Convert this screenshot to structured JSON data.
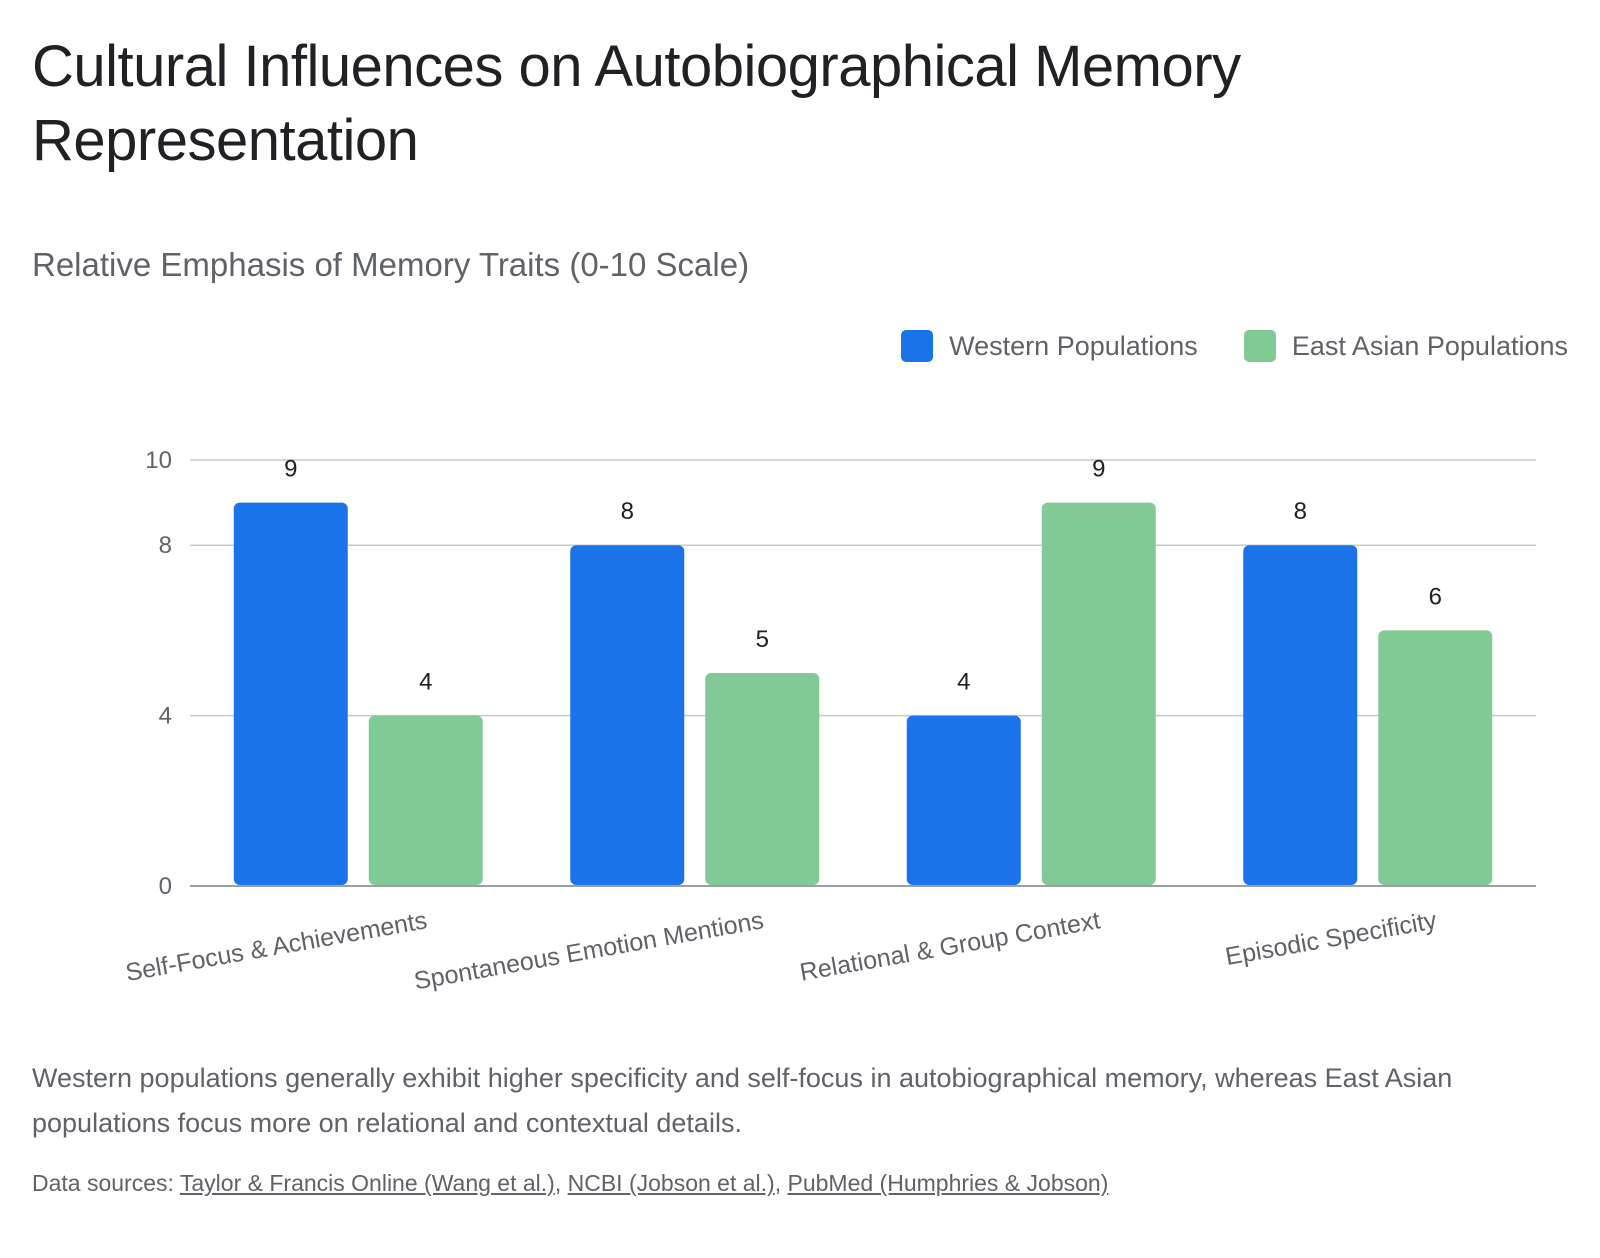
{
  "title": "Cultural Influences on Autobiographical Memory Representation",
  "description": "Western populations generally exhibit higher specificity and self-focus in autobiographical memory, whereas East Asian populations focus more on relational and contextual details.",
  "sources": {
    "prefix": "Data sources:",
    "links": [
      {
        "text": "Taylor & Francis Online (Wang et al.)"
      },
      {
        "text": "NCBI (Jobson et al.)"
      },
      {
        "text": "PubMed (Humphries & Jobson)"
      }
    ],
    "separator": ","
  },
  "chart_data": {
    "type": "bar",
    "title": "Relative Emphasis of Memory Traits (0-10 Scale)",
    "categories": [
      "Self-Focus & Achievements",
      "Spontaneous Emotion Mentions",
      "Relational & Group Context",
      "Episodic Specificity"
    ],
    "series": [
      {
        "name": "Western Populations",
        "color": "#1a73e8",
        "values": [
          9,
          8,
          4,
          8
        ]
      },
      {
        "name": "East Asian Populations",
        "color": "#81c995",
        "values": [
          4,
          5,
          9,
          6
        ]
      }
    ],
    "yticks": [
      0,
      4,
      8,
      10
    ],
    "ylim": [
      0,
      10
    ],
    "grid": true,
    "legend_position": "top-right",
    "data_labels": true
  }
}
